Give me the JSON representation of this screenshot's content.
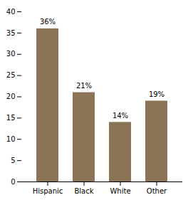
{
  "chart_data": {
    "type": "bar",
    "categories": [
      "Hispanic",
      "Black",
      "White",
      "Other"
    ],
    "values": [
      36,
      21,
      14,
      19
    ],
    "value_labels": [
      "36%",
      "21%",
      "14%",
      "19%"
    ],
    "data_labels": true,
    "color": "#8B7355",
    "ylim": [
      0,
      40
    ],
    "yticks": [
      0,
      5,
      10,
      15,
      20,
      25,
      30,
      35,
      40
    ],
    "grid": false
  }
}
